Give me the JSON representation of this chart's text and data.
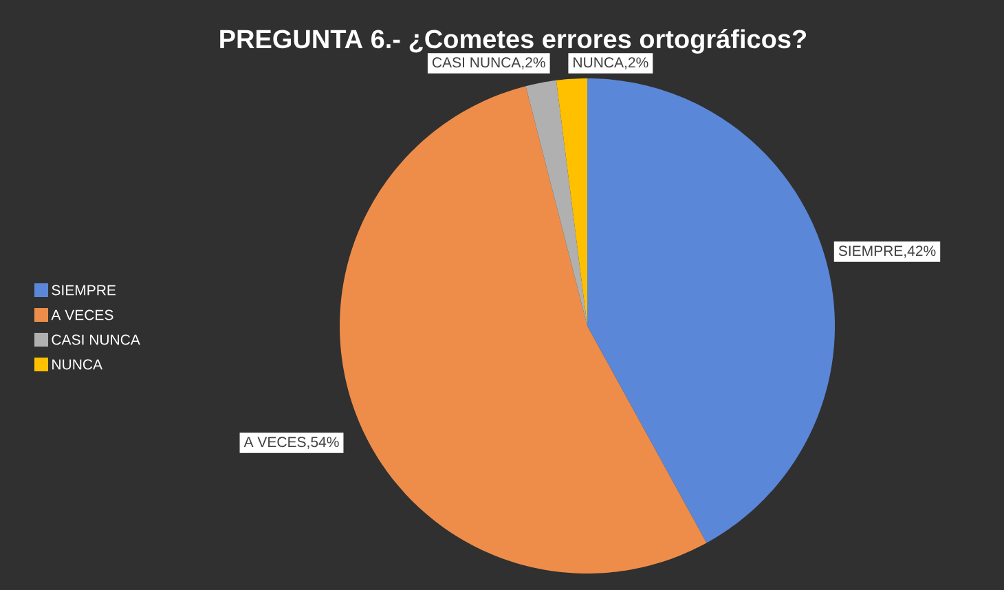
{
  "chart_data": {
    "type": "pie",
    "title": "PREGUNTA 6.- ¿Cometes errores ortográficos?",
    "categories": [
      "SIEMPRE",
      "A VECES",
      "CASI NUNCA",
      "NUNCA"
    ],
    "values": [
      42,
      54,
      2,
      2
    ],
    "colors": [
      "#5b87d8",
      "#ee8d4a",
      "#b0b0b0",
      "#ffc000"
    ],
    "value_labels": [
      "SIEMPRE,42%",
      "A VECES,54%",
      "CASI NUNCA,2%",
      "NUNCA,2%"
    ],
    "legend": "left"
  }
}
